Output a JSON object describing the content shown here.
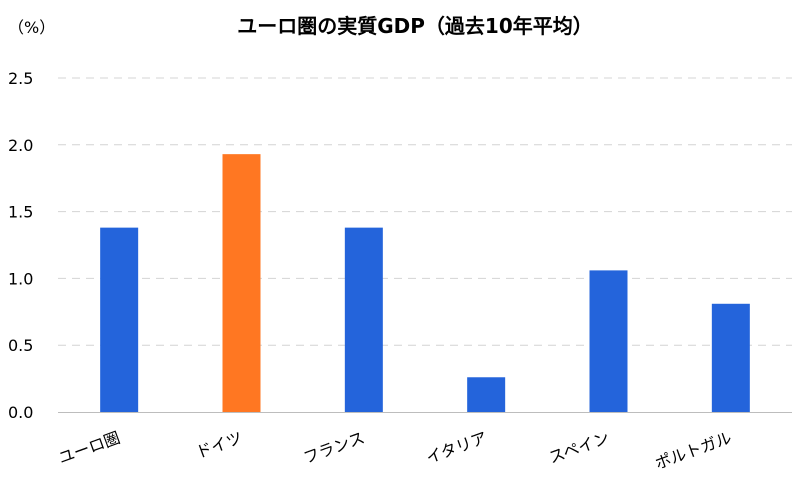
{
  "chart_data": {
    "type": "bar",
    "title": "ユーロ圏の実質GDP（過去10年平均）",
    "ylabel": "（%）",
    "xlabel": "",
    "categories": [
      "ユーロ圏",
      "ドイツ",
      "フランス",
      "イタリア",
      "スペイン",
      "ポルトガル"
    ],
    "values": [
      1.38,
      1.93,
      1.38,
      0.26,
      1.06,
      0.81
    ],
    "ylim": [
      0,
      2.5
    ],
    "yticks": [
      "0.0",
      "0.5",
      "1.0",
      "1.5",
      "2.0",
      "2.5"
    ],
    "grid": true,
    "colors": {
      "default": "#2464DB",
      "highlight": "#FF7722"
    },
    "highlight_category": "ドイツ"
  }
}
